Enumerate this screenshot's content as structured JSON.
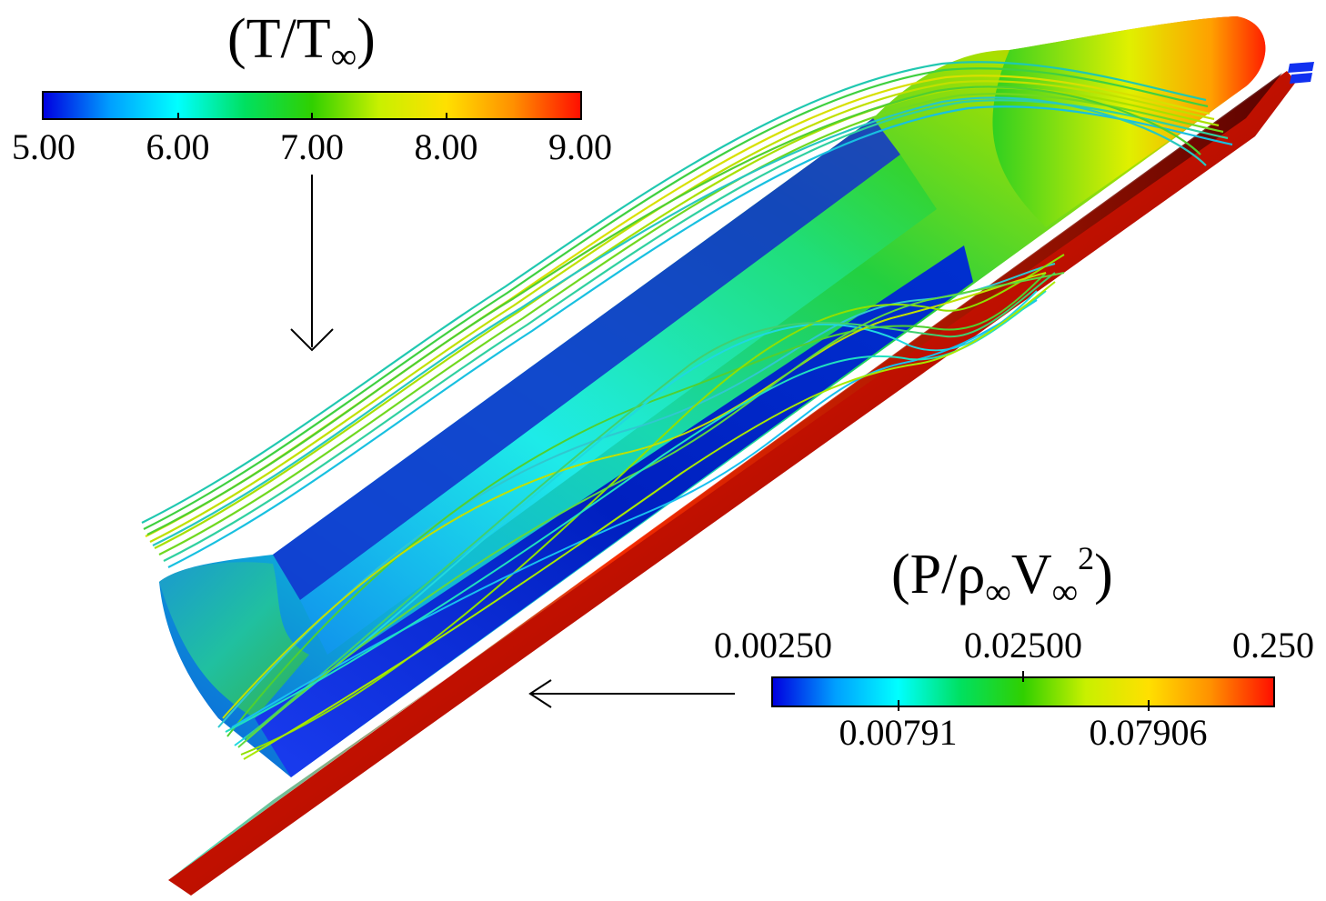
{
  "temperature_legend": {
    "title_base": "(T/T",
    "title_sub": "∞",
    "title_end": ")",
    "ticks": [
      "5.00",
      "6.00",
      "7.00",
      "8.00",
      "9.00"
    ],
    "gradient": [
      "#0000e0",
      "#00a0ff",
      "#00ffff",
      "#00e060",
      "#30d000",
      "#c8f000",
      "#ffe000",
      "#ff9000",
      "#ff1000"
    ]
  },
  "pressure_legend": {
    "title_base": "(P/ρ",
    "title_sub1": "∞",
    "title_mid": "V",
    "title_sub2": "∞",
    "title_sup": "2",
    "title_end": ")",
    "top_ticks": [
      "0.00250",
      "0.02500",
      "0.250"
    ],
    "bottom_ticks": [
      "0.00791",
      "0.07906"
    ],
    "gradient": [
      "#0000e0",
      "#00a0ff",
      "#00ffff",
      "#00e060",
      "#30d000",
      "#c8f000",
      "#ffe000",
      "#ff9000",
      "#ff1000"
    ]
  }
}
